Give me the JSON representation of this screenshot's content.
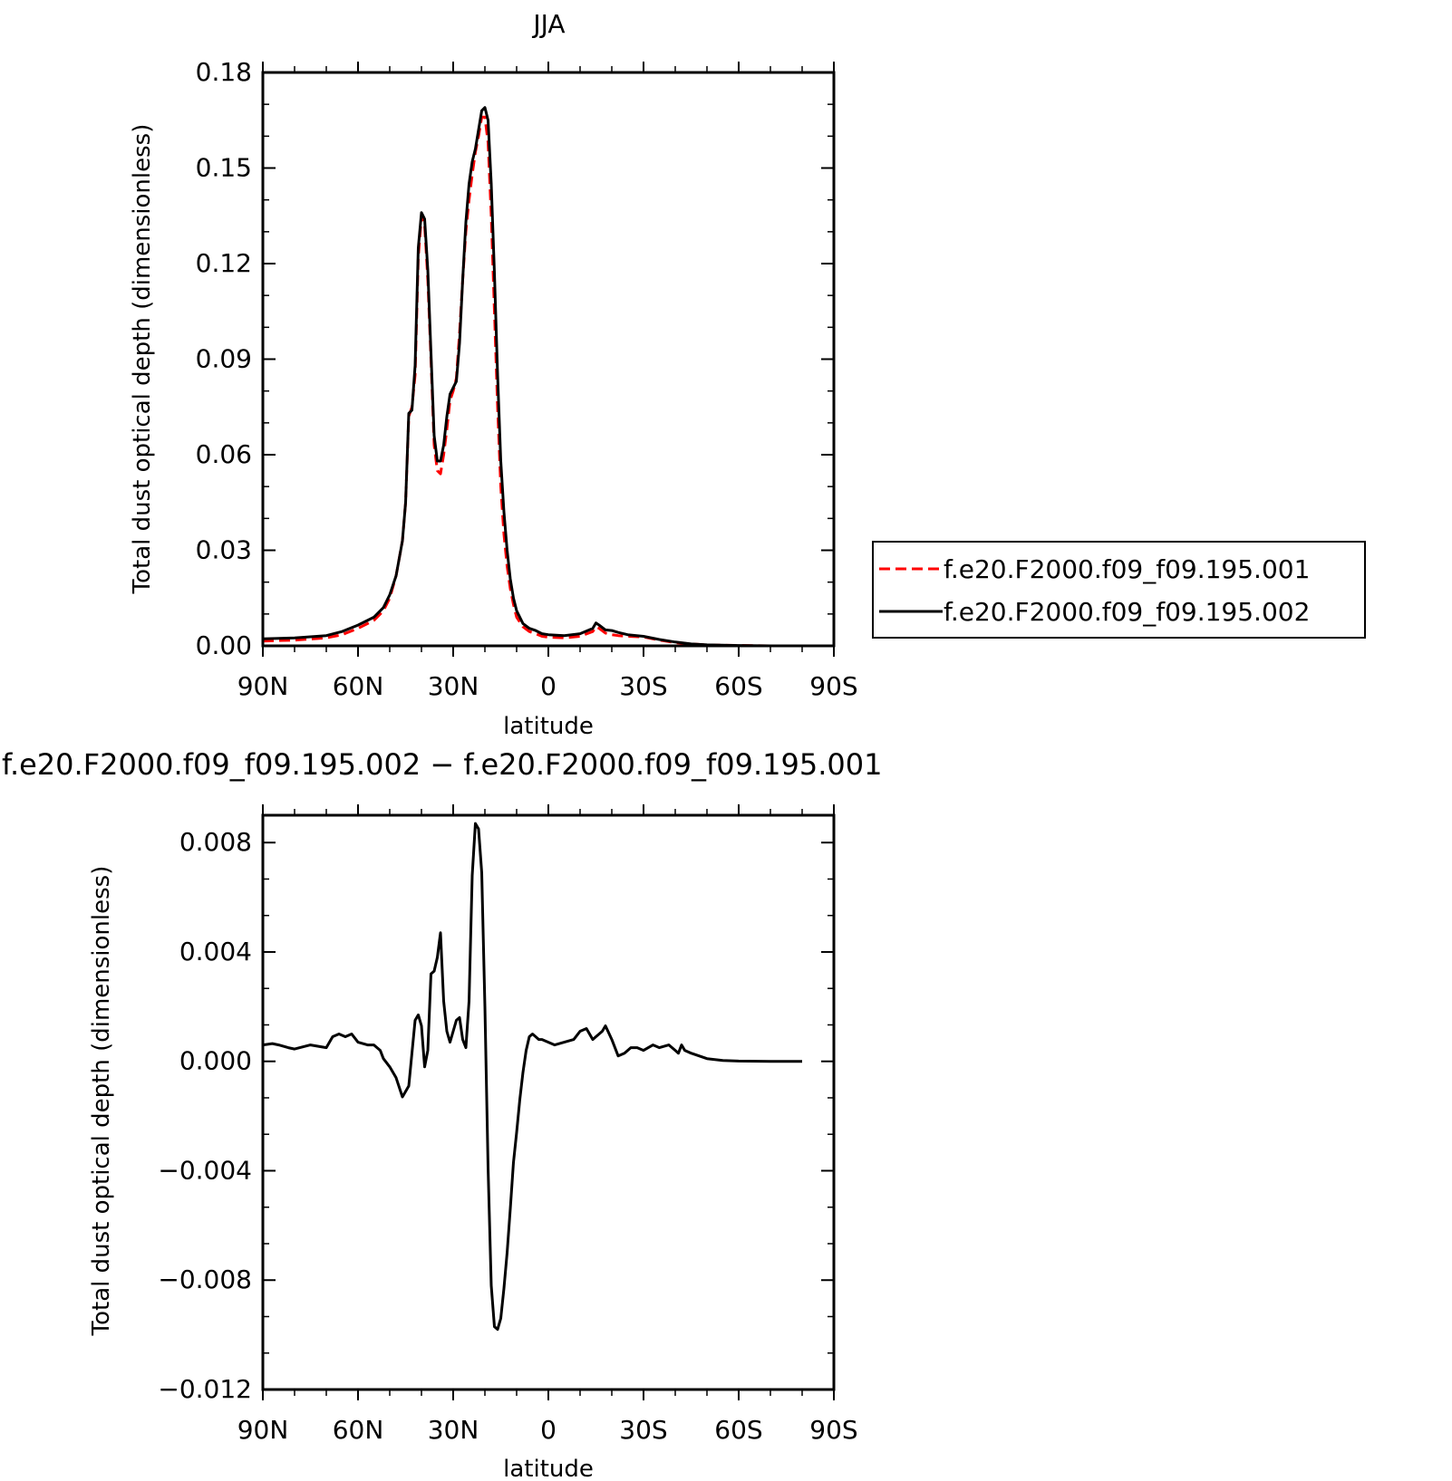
{
  "chart_data": [
    {
      "type": "line",
      "title": "JJA",
      "xlabel": "latitude",
      "ylabel": "Total dust optical depth (dimensionless)",
      "x_ticks": [
        90,
        60,
        30,
        0,
        -30,
        -60,
        -90
      ],
      "x_tick_labels": [
        "90N",
        "60N",
        "30N",
        "0",
        "30S",
        "60S",
        "90S"
      ],
      "y_ticks": [
        0,
        0.03,
        0.06,
        0.09,
        0.12,
        0.15,
        0.18
      ],
      "y_tick_labels": [
        "0.00",
        "0.03",
        "0.06",
        "0.09",
        "0.12",
        "0.15",
        "0.18"
      ],
      "xlim": [
        90,
        -90
      ],
      "ylim": [
        0,
        0.18
      ],
      "legend_position": "right",
      "series": [
        {
          "name": "f.e20.F2000.f09_f09.195.001",
          "color": "#ff0000",
          "dash": "dashed",
          "x": [
            90,
            80,
            70,
            65,
            60,
            55,
            52,
            50,
            48,
            46,
            45,
            44,
            43,
            42,
            41,
            40,
            39,
            38,
            37,
            36,
            35,
            34,
            33,
            32,
            31,
            30,
            29,
            28,
            27,
            26,
            25,
            24,
            23,
            22,
            21,
            20,
            19,
            18,
            17,
            16,
            15,
            14,
            13,
            12,
            11,
            10,
            8,
            6,
            4,
            2,
            0,
            -5,
            -10,
            -14,
            -15,
            -16,
            -18,
            -20,
            -22,
            -25,
            -30,
            -35,
            -40,
            -45,
            -50,
            -60,
            -70,
            -80
          ],
          "y": [
            0.0015,
            0.0018,
            0.0025,
            0.0035,
            0.0055,
            0.008,
            0.011,
            0.015,
            0.022,
            0.033,
            0.045,
            0.072,
            0.075,
            0.085,
            0.122,
            0.135,
            0.132,
            0.115,
            0.09,
            0.063,
            0.055,
            0.054,
            0.06,
            0.068,
            0.077,
            0.08,
            0.084,
            0.098,
            0.115,
            0.13,
            0.14,
            0.148,
            0.155,
            0.16,
            0.166,
            0.166,
            0.158,
            0.135,
            0.105,
            0.075,
            0.05,
            0.035,
            0.025,
            0.018,
            0.013,
            0.009,
            0.006,
            0.0045,
            0.0038,
            0.003,
            0.0027,
            0.0025,
            0.003,
            0.0045,
            0.006,
            0.0055,
            0.004,
            0.0035,
            0.0032,
            0.003,
            0.0028,
            0.0018,
            0.001,
            0.0006,
            0.0003,
            0.0001,
            0.0,
            0.0
          ]
        },
        {
          "name": "f.e20.F2000.f09_f09.195.002",
          "color": "#000000",
          "dash": "solid",
          "x": [
            90,
            80,
            70,
            65,
            60,
            55,
            52,
            50,
            48,
            46,
            45,
            44,
            43,
            42,
            41,
            40,
            39,
            38,
            37,
            36,
            35,
            34,
            33,
            32,
            31,
            30,
            29,
            28,
            27,
            26,
            25,
            24,
            23,
            22,
            21,
            20,
            19,
            18,
            17,
            16,
            15,
            14,
            13,
            12,
            11,
            10,
            8,
            6,
            4,
            2,
            0,
            -5,
            -10,
            -14,
            -15,
            -16,
            -18,
            -20,
            -22,
            -25,
            -30,
            -35,
            -40,
            -45,
            -50,
            -60,
            -70,
            -80
          ],
          "y": [
            0.0022,
            0.0025,
            0.0032,
            0.0045,
            0.0065,
            0.009,
            0.012,
            0.016,
            0.022,
            0.033,
            0.045,
            0.073,
            0.074,
            0.088,
            0.125,
            0.136,
            0.134,
            0.118,
            0.092,
            0.066,
            0.058,
            0.058,
            0.063,
            0.072,
            0.079,
            0.081,
            0.083,
            0.095,
            0.115,
            0.133,
            0.145,
            0.152,
            0.156,
            0.162,
            0.168,
            0.169,
            0.165,
            0.145,
            0.117,
            0.085,
            0.058,
            0.042,
            0.03,
            0.021,
            0.015,
            0.011,
            0.007,
            0.0055,
            0.0048,
            0.0038,
            0.0035,
            0.0032,
            0.0038,
            0.0055,
            0.0072,
            0.0065,
            0.005,
            0.0048,
            0.0042,
            0.0035,
            0.003,
            0.002,
            0.0012,
            0.0006,
            0.0003,
            0.0001,
            0.0,
            0.0
          ]
        }
      ]
    },
    {
      "type": "line",
      "title": "f.e20.F2000.f09_f09.195.002 − f.e20.F2000.f09_f09.195.001",
      "xlabel": "latitude",
      "ylabel": "Total dust optical depth (dimensionless)",
      "x_ticks": [
        90,
        60,
        30,
        0,
        -30,
        -60,
        -90
      ],
      "x_tick_labels": [
        "90N",
        "60N",
        "30N",
        "0",
        "30S",
        "60S",
        "90S"
      ],
      "y_ticks": [
        -0.012,
        -0.008,
        -0.004,
        0,
        0.004,
        0.008
      ],
      "y_tick_labels": [
        "−0.012",
        "−0.008",
        "−0.004",
        "0.000",
        "0.004",
        "0.008"
      ],
      "xlim": [
        90,
        -90
      ],
      "ylim": [
        -0.012,
        0.009
      ],
      "series": [
        {
          "name": "",
          "color": "#000000",
          "dash": "solid",
          "x": [
            90,
            87,
            85,
            82,
            80,
            75,
            70,
            68,
            66,
            64,
            62,
            60,
            57,
            55,
            53,
            52,
            50,
            48,
            46,
            44,
            42,
            41,
            40,
            39,
            38,
            37,
            36,
            35,
            34,
            33,
            32,
            31,
            30,
            29,
            28,
            27,
            26,
            25,
            24,
            23,
            22,
            21,
            20,
            19,
            18,
            17,
            16,
            15,
            14,
            13,
            12,
            11,
            10,
            9,
            8,
            7,
            6,
            5,
            4,
            3,
            2,
            0,
            -2,
            -5,
            -8,
            -10,
            -12,
            -14,
            -15,
            -16,
            -17,
            -18,
            -20,
            -22,
            -24,
            -26,
            -28,
            -30,
            -33,
            -35,
            -38,
            -40,
            -41,
            -42,
            -43,
            -45,
            -50,
            -55,
            -60,
            -70,
            -80
          ],
          "y": [
            0.0006,
            0.00065,
            0.0006,
            0.0005,
            0.00045,
            0.0006,
            0.0005,
            0.0009,
            0.001,
            0.0009,
            0.001,
            0.0007,
            0.0006,
            0.0006,
            0.0004,
            0.0001,
            -0.0002,
            -0.0006,
            -0.0013,
            -0.0009,
            0.0015,
            0.0017,
            0.0013,
            -0.0002,
            0.0004,
            0.0032,
            0.0033,
            0.0038,
            0.0047,
            0.0022,
            0.0011,
            0.0007,
            0.0011,
            0.0015,
            0.0016,
            0.0008,
            0.0005,
            0.0022,
            0.0068,
            0.0087,
            0.0085,
            0.0069,
            0.002,
            -0.0039,
            -0.0082,
            -0.0097,
            -0.0098,
            -0.0094,
            -0.0083,
            -0.007,
            -0.0054,
            -0.0037,
            -0.0026,
            -0.0014,
            -0.0004,
            0.0004,
            0.0009,
            0.001,
            0.0009,
            0.0008,
            0.0008,
            0.0007,
            0.0006,
            0.0007,
            0.0008,
            0.0011,
            0.0012,
            0.0008,
            0.0009,
            0.001,
            0.0011,
            0.0013,
            0.0008,
            0.0002,
            0.0003,
            0.0005,
            0.0005,
            0.0004,
            0.0006,
            0.0005,
            0.0006,
            0.0004,
            0.0003,
            0.0006,
            0.0004,
            0.0003,
            0.0001,
            3e-05,
            1e-05,
            0.0,
            0.0
          ]
        }
      ]
    }
  ]
}
